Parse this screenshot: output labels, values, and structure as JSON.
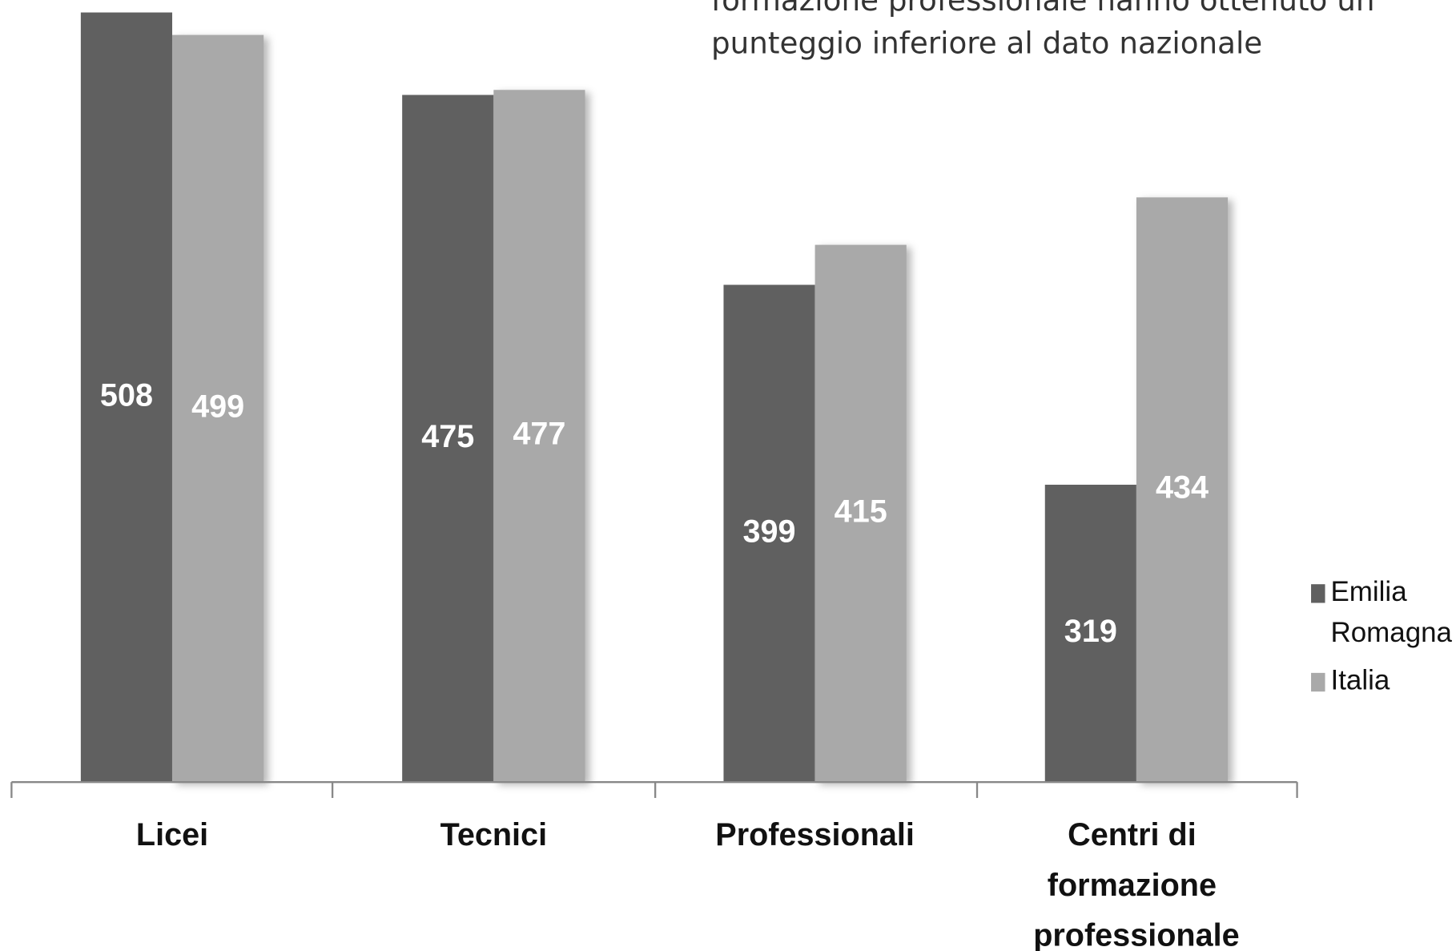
{
  "chart_data": {
    "type": "bar",
    "annotations": [
      "formazione professionale hanno ottenuto un",
      "punteggio inferiore al dato nazionale"
    ],
    "categories": [
      "Licei",
      "Tecnici",
      "Professionali",
      "Centri di formazione professionale"
    ],
    "series": [
      {
        "name": "Emilia Romagna",
        "color": "#606060",
        "values": [
          508,
          475,
          399,
          319
        ]
      },
      {
        "name": "Italia",
        "color": "#a9a9a9",
        "values": [
          499,
          477,
          415,
          434
        ]
      }
    ],
    "ylim": [
      200,
      510
    ]
  }
}
